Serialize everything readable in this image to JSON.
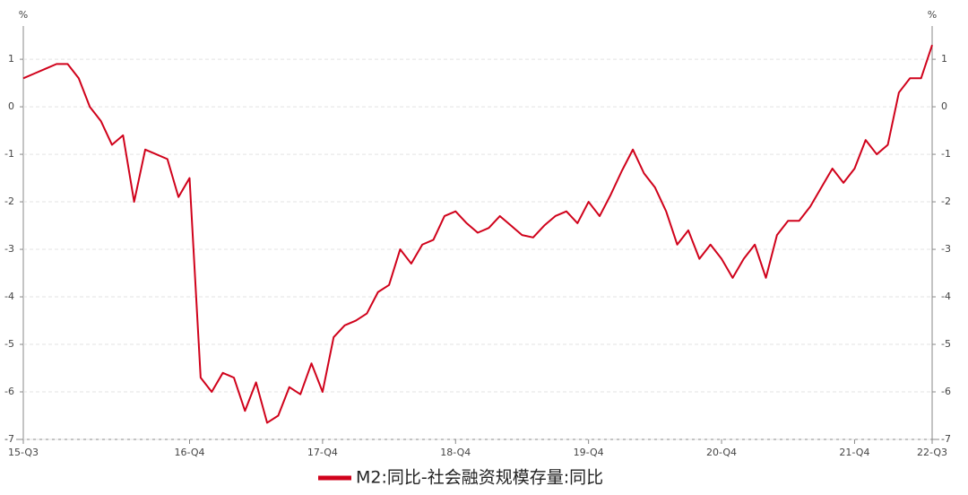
{
  "chart_data": {
    "type": "line",
    "y_unit": "%",
    "categories": [
      "15-Q3",
      null,
      null,
      null,
      null,
      null,
      null,
      null,
      null,
      null,
      null,
      null,
      null,
      null,
      null,
      "16-Q4",
      null,
      null,
      null,
      null,
      null,
      null,
      null,
      null,
      null,
      null,
      null,
      "17-Q4",
      null,
      null,
      null,
      null,
      null,
      null,
      null,
      null,
      null,
      null,
      null,
      "18-Q4",
      null,
      null,
      null,
      null,
      null,
      null,
      null,
      null,
      null,
      null,
      null,
      "19-Q4",
      null,
      null,
      null,
      null,
      null,
      null,
      null,
      null,
      null,
      null,
      null,
      "20-Q4",
      null,
      null,
      null,
      null,
      null,
      null,
      null,
      null,
      null,
      null,
      null,
      "21-Q4",
      null,
      null,
      null,
      null,
      null,
      null,
      "22-Q3"
    ],
    "series": [
      {
        "name": "M2:同比-社会融资规模存量:同比",
        "color": "#d0021b",
        "values": [
          0.6,
          0.7,
          0.8,
          0.9,
          0.9,
          0.6,
          0.0,
          -0.3,
          -0.8,
          -0.6,
          -2.0,
          -0.9,
          -1.0,
          -1.1,
          -1.9,
          -1.5,
          -5.7,
          -6.0,
          -5.6,
          -5.7,
          -6.4,
          -5.8,
          -6.65,
          -6.5,
          -5.9,
          -6.05,
          -5.4,
          -6.0,
          -4.85,
          -4.6,
          -4.5,
          -4.35,
          -3.9,
          -3.75,
          -3.0,
          -3.3,
          -2.9,
          -2.8,
          -2.3,
          -2.2,
          -2.45,
          -2.65,
          -2.55,
          -2.3,
          -2.5,
          -2.7,
          -2.75,
          -2.5,
          -2.3,
          -2.2,
          -2.45,
          -2.0,
          -2.3,
          -1.85,
          -1.35,
          -0.9,
          -1.4,
          -1.7,
          -2.2,
          -2.9,
          -2.6,
          -3.2,
          -2.9,
          -3.2,
          -3.6,
          -3.2,
          -2.9,
          -3.6,
          -2.7,
          -2.4,
          -2.4,
          -2.1,
          -1.7,
          -1.3,
          -1.6,
          -1.3,
          -0.7,
          -1.0,
          -0.8,
          0.3,
          0.6,
          0.6,
          1.3
        ]
      }
    ],
    "ylim": [
      -7,
      1.7
    ],
    "yticks": [
      -7,
      -6,
      -5,
      -4,
      -3,
      -2,
      -1,
      0,
      1
    ],
    "grid": true,
    "legend": "bottom"
  }
}
